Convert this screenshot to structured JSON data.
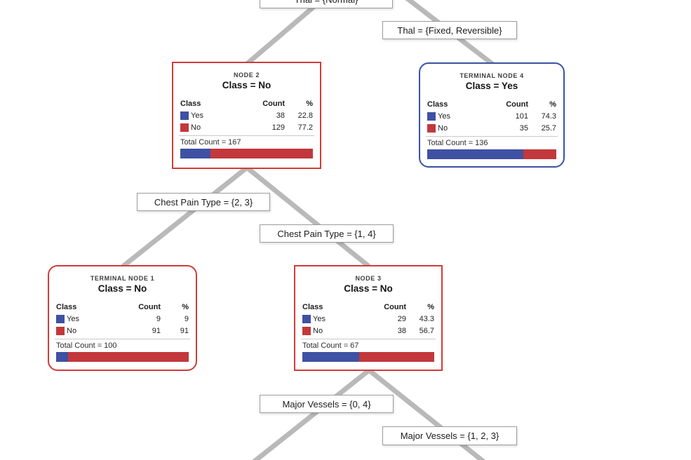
{
  "tree": {
    "table_headers": {
      "class": "Class",
      "count": "Count",
      "pct": "%"
    },
    "colors": {
      "yes_blue": "#3f51a3",
      "no_red": "#c2383c",
      "internal_node_border": "#d23b38",
      "terminal_yes_border": "#3953a4",
      "edge_line": "#b9b9b9"
    },
    "edge_labels": [
      {
        "text": "Thal = {Normal}"
      },
      {
        "text": "Thal = {Fixed, Reversible}"
      },
      {
        "text": "Chest Pain Type = {2, 3}"
      },
      {
        "text": "Chest Pain Type = {1, 4}"
      },
      {
        "text": "Major Vessels = {0, 4}"
      },
      {
        "text": "Major Vessels = {1, 2, 3}"
      }
    ],
    "nodes": [
      {
        "title": "NODE 2",
        "class_label": "Class = No",
        "rows": [
          {
            "label": "Yes",
            "count": "38",
            "pct": "22.8"
          },
          {
            "label": "No",
            "count": "129",
            "pct": "77.2"
          }
        ],
        "total": "Total Count = 167",
        "bar": {
          "yes": 22.8,
          "no": 77.2
        }
      },
      {
        "title": "TERMINAL NODE 4",
        "class_label": "Class = Yes",
        "rows": [
          {
            "label": "Yes",
            "count": "101",
            "pct": "74.3"
          },
          {
            "label": "No",
            "count": "35",
            "pct": "25.7"
          }
        ],
        "total": "Total Count = 136",
        "bar": {
          "yes": 74.3,
          "no": 25.7
        }
      },
      {
        "title": "TERMINAL NODE 1",
        "class_label": "Class = No",
        "rows": [
          {
            "label": "Yes",
            "count": "9",
            "pct": "9"
          },
          {
            "label": "No",
            "count": "91",
            "pct": "91"
          }
        ],
        "total": "Total Count = 100",
        "bar": {
          "yes": 9,
          "no": 91
        }
      },
      {
        "title": "NODE 3",
        "class_label": "Class = No",
        "rows": [
          {
            "label": "Yes",
            "count": "29",
            "pct": "43.3"
          },
          {
            "label": "No",
            "count": "38",
            "pct": "56.7"
          }
        ],
        "total": "Total Count = 67",
        "bar": {
          "yes": 43.3,
          "no": 56.7
        }
      }
    ]
  }
}
